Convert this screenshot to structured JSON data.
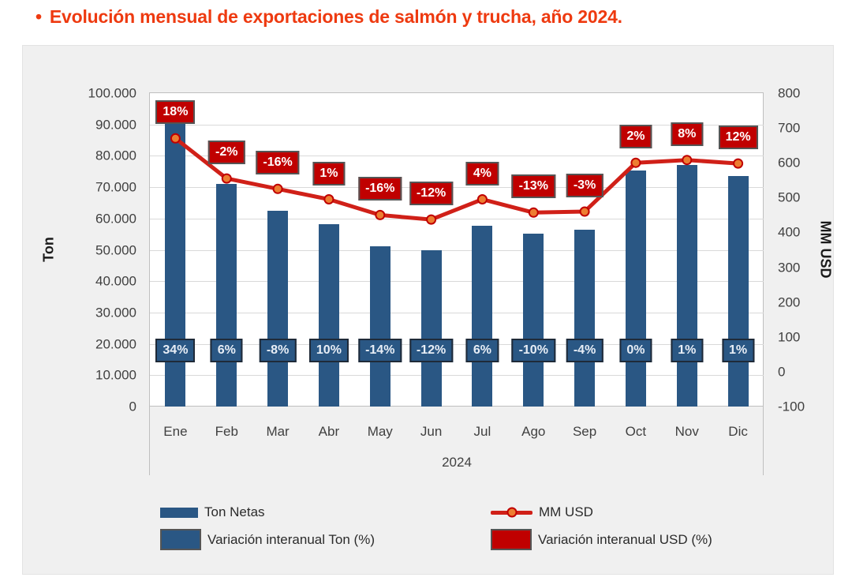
{
  "title": {
    "bullet": "•",
    "text": "Evolución mensual de exportaciones de salmón y trucha, año 2024."
  },
  "colors": {
    "title": "#EE3A10",
    "container_bg": "#F0F0F0",
    "plot_border": "#BFBFBF",
    "gridline": "#D9D9D9",
    "axis_text": "#404040",
    "bar_blue": "#2A5784",
    "label_red": "#C00000",
    "line_red": "#D02018",
    "marker_orange": "#ED7D31"
  },
  "chart_data": {
    "type": "combo-bar-line",
    "title": "Evolución mensual de exportaciones de salmón y trucha, año 2024",
    "categories": [
      "Ene",
      "Feb",
      "Mar",
      "Abr",
      "May",
      "Jun",
      "Jul",
      "Ago",
      "Sep",
      "Oct",
      "Nov",
      "Dic"
    ],
    "x_group_label": "2024",
    "grid": true,
    "legend_position": "bottom",
    "left_axis": {
      "title": "Ton",
      "min": 0,
      "max": 100000,
      "step": 10000,
      "tick_labels": [
        "100.000",
        "90.000",
        "80.000",
        "70.000",
        "60.000",
        "50.000",
        "40.000",
        "30.000",
        "20.000",
        "10.000",
        "0"
      ]
    },
    "right_axis": {
      "title": "MM USD",
      "min": -100,
      "max": 800,
      "step": 100,
      "tick_labels": [
        "800",
        "700",
        "600",
        "500",
        "400",
        "300",
        "200",
        "100",
        "0",
        "-100"
      ]
    },
    "series": [
      {
        "name": "Ton Netas",
        "chart_type": "bar",
        "axis": "left",
        "color": "#2A5784",
        "values": [
          90700,
          71000,
          62500,
          58200,
          51100,
          49900,
          57600,
          55100,
          56500,
          75300,
          77200,
          73500
        ]
      },
      {
        "name": "MM USD",
        "chart_type": "line",
        "axis": "right",
        "color": "#D02018",
        "marker_fill": "#ED7D31",
        "marker_border": "#C00000",
        "values": [
          670,
          555,
          525,
          495,
          450,
          437,
          495,
          457,
          460,
          600,
          608,
          598
        ]
      },
      {
        "name": "Variación interanual Ton (%)",
        "chart_type": "data-labels",
        "color": "#2A5784",
        "labels": [
          "34%",
          "6%",
          "-8%",
          "10%",
          "-14%",
          "-12%",
          "6%",
          "-10%",
          "-4%",
          "0%",
          "1%",
          "1%"
        ]
      },
      {
        "name": "Variación interanual USD (%)",
        "chart_type": "data-labels",
        "color": "#C00000",
        "labels": [
          "18%",
          "-2%",
          "-16%",
          "1%",
          "-16%",
          "-12%",
          "4%",
          "-13%",
          "-3%",
          "2%",
          "8%",
          "12%"
        ]
      }
    ]
  }
}
